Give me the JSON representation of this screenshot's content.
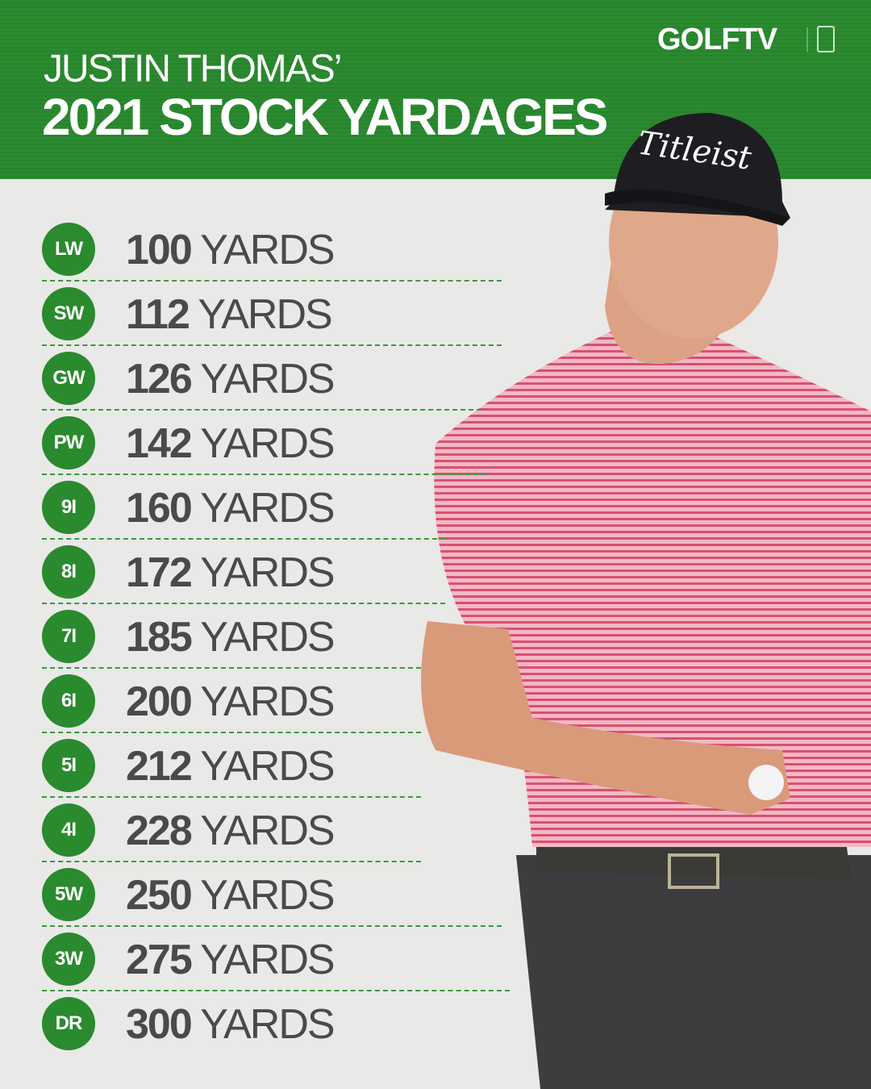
{
  "header": {
    "title_line1": "JUSTIN THOMAS’",
    "title_line2": "2021 STOCK YARDAGES",
    "logo": "GOLFTV"
  },
  "unit": "YARDS",
  "colors": {
    "brand_green": "#2a8a2e",
    "text": "#4a4a4a",
    "background": "#e9e9e7"
  },
  "clubs": [
    {
      "club": "LW",
      "yards": "100"
    },
    {
      "club": "SW",
      "yards": "112"
    },
    {
      "club": "GW",
      "yards": "126"
    },
    {
      "club": "PW",
      "yards": "142"
    },
    {
      "club": "9I",
      "yards": "160"
    },
    {
      "club": "8I",
      "yards": "172"
    },
    {
      "club": "7I",
      "yards": "185"
    },
    {
      "club": "6I",
      "yards": "200"
    },
    {
      "club": "5I",
      "yards": "212"
    },
    {
      "club": "4I",
      "yards": "228"
    },
    {
      "club": "5W",
      "yards": "250"
    },
    {
      "club": "3W",
      "yards": "275"
    },
    {
      "club": "DR",
      "yards": "300"
    }
  ],
  "photo": {
    "cap_text": "Titleist"
  }
}
